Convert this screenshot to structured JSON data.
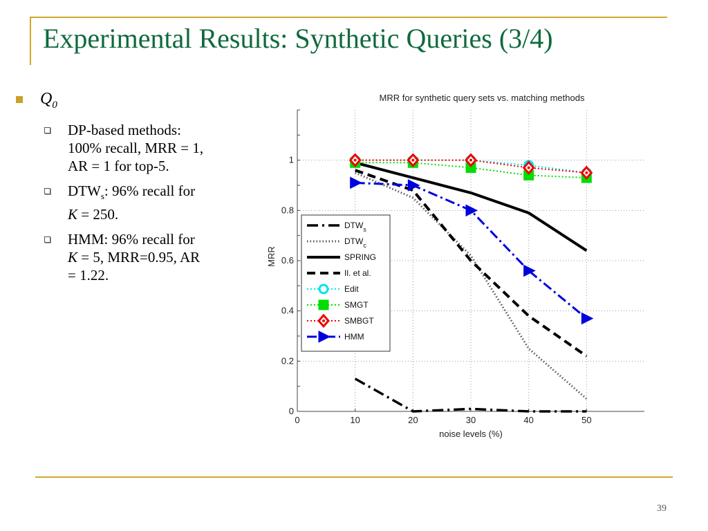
{
  "slide": {
    "title": "Experimental Results: Synthetic Queries (3/4)",
    "page_number": "39"
  },
  "bullets": {
    "main_label": "Q",
    "main_subscript": "0",
    "items": [
      {
        "line1": "DP-based methods:",
        "line2": "100% recall, MRR = 1,",
        "line3": "AR = 1 for top-5."
      },
      {
        "name": "DTW",
        "name_subscript": "s",
        "line1_rest": ": 96% recall for",
        "var": "K",
        "line2_rest": " = 250."
      },
      {
        "line1": "HMM: 96% recall for",
        "var": "K",
        "line2_rest": " = 5, MRR=0.95, AR",
        "line3": "= 1.22."
      }
    ]
  },
  "colors": {
    "title": "#0f6a3c",
    "accent": "#d2a82a",
    "bullet": "#c9a227"
  },
  "chart_data": {
    "type": "line",
    "title": "MRR for synthetic query sets vs. matching methods",
    "xlabel": "noise levels (%)",
    "ylabel": "MRR",
    "xlim": [
      0,
      60
    ],
    "ylim": [
      0,
      1.2
    ],
    "xticks": [
      0,
      10,
      20,
      30,
      40,
      50
    ],
    "yticks": [
      0,
      0.2,
      0.4,
      0.6,
      0.8,
      1
    ],
    "xtick_labels": [
      "0",
      "10",
      "20",
      "30",
      "40",
      "50"
    ],
    "ytick_labels": [
      "0",
      "0.2",
      "0.4",
      "0.6",
      "0.8",
      "1"
    ],
    "grid": true,
    "legend_position": "left",
    "x": [
      10,
      20,
      30,
      40,
      50
    ],
    "series": [
      {
        "name": "DTW",
        "name_sub": "s",
        "values": [
          0.13,
          0.0,
          0.01,
          0.0,
          0.0
        ],
        "color": "#000000",
        "dash": "16 6 3 6",
        "width": 3.5,
        "marker": "none"
      },
      {
        "name": "DTW",
        "name_sub": "c",
        "values": [
          0.95,
          0.85,
          0.62,
          0.25,
          0.05
        ],
        "color": "#555555",
        "dash": "1.5 3",
        "width": 3,
        "marker": "none"
      },
      {
        "name": "SPRING",
        "values": [
          0.99,
          0.93,
          0.87,
          0.79,
          0.64
        ],
        "color": "#000000",
        "dash": "",
        "width": 4,
        "marker": "none"
      },
      {
        "name": "Il. et al.",
        "values": [
          0.96,
          0.88,
          0.6,
          0.38,
          0.22
        ],
        "color": "#000000",
        "dash": "12 7",
        "width": 4,
        "marker": "none"
      },
      {
        "name": "Edit",
        "values": [
          1.0,
          1.0,
          1.0,
          0.98,
          0.95
        ],
        "color": "#00e5ee",
        "dash": "2 3",
        "width": 2,
        "marker": "circle"
      },
      {
        "name": "SMGT",
        "values": [
          0.99,
          0.99,
          0.97,
          0.94,
          0.93
        ],
        "color": "#00dd00",
        "dash": "2 3",
        "width": 2,
        "marker": "square"
      },
      {
        "name": "SMBGT",
        "values": [
          1.0,
          1.0,
          1.0,
          0.97,
          0.95
        ],
        "color": "#ee0000",
        "dash": "2 3",
        "width": 2,
        "marker": "diamond"
      },
      {
        "name": "HMM",
        "values": [
          0.91,
          0.9,
          0.8,
          0.56,
          0.37
        ],
        "color": "#0000dd",
        "dash": "14 5 3 5",
        "width": 3,
        "marker": "triangle"
      }
    ]
  }
}
